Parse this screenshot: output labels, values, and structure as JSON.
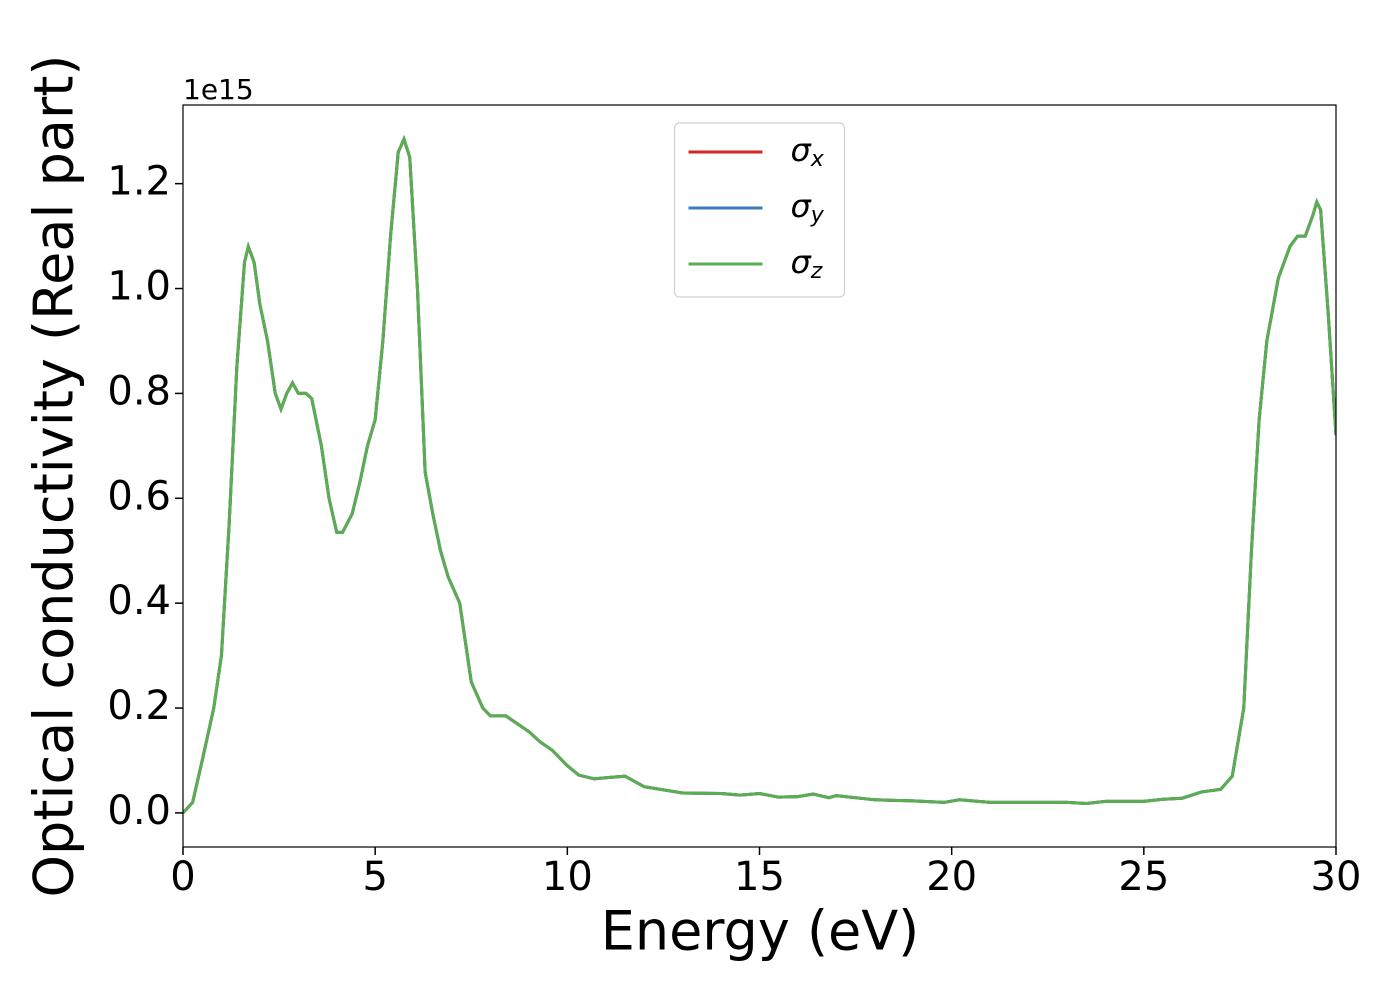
{
  "chart_data": {
    "type": "line",
    "xlabel": "Energy (eV)",
    "ylabel": "Optical conductivity (Real part)",
    "offset_label": "1e15",
    "x": [
      0,
      0.25,
      0.5,
      0.8,
      1.0,
      1.2,
      1.4,
      1.6,
      1.7,
      1.85,
      2.0,
      2.2,
      2.4,
      2.55,
      2.7,
      2.85,
      3.0,
      3.2,
      3.35,
      3.6,
      3.8,
      4.0,
      4.15,
      4.4,
      4.6,
      4.8,
      5.0,
      5.2,
      5.4,
      5.6,
      5.75,
      5.9,
      6.1,
      6.3,
      6.5,
      6.7,
      6.9,
      7.2,
      7.5,
      7.8,
      8.0,
      8.4,
      8.7,
      9.0,
      9.3,
      9.6,
      10.0,
      10.3,
      10.7,
      11.0,
      11.5,
      12.0,
      13.0,
      14.0,
      14.5,
      15.0,
      15.5,
      16.0,
      16.4,
      16.8,
      17.0,
      18.0,
      19.0,
      19.8,
      20.2,
      21.0,
      22.0,
      23.0,
      23.5,
      24.0,
      25.0,
      25.5,
      26.0,
      26.5,
      27.0,
      27.3,
      27.6,
      27.8,
      28.0,
      28.2,
      28.5,
      28.8,
      29.0,
      29.2,
      29.4,
      29.5,
      29.6,
      29.8,
      30.0
    ],
    "series": [
      {
        "name": "σx",
        "color": "#d62728",
        "values": [
          0,
          0.02,
          0.1,
          0.2,
          0.3,
          0.55,
          0.85,
          1.05,
          1.08,
          1.05,
          0.97,
          0.9,
          0.8,
          0.77,
          0.8,
          0.82,
          0.8,
          0.8,
          0.79,
          0.7,
          0.6,
          0.535,
          0.535,
          0.57,
          0.63,
          0.7,
          0.75,
          0.9,
          1.1,
          1.26,
          1.285,
          1.25,
          1.0,
          0.65,
          0.57,
          0.5,
          0.45,
          0.4,
          0.25,
          0.2,
          0.185,
          0.185,
          0.17,
          0.155,
          0.135,
          0.12,
          0.09,
          0.072,
          0.065,
          0.067,
          0.07,
          0.05,
          0.038,
          0.037,
          0.034,
          0.037,
          0.03,
          0.031,
          0.036,
          0.029,
          0.033,
          0.025,
          0.023,
          0.02,
          0.025,
          0.02,
          0.02,
          0.02,
          0.018,
          0.022,
          0.022,
          0.026,
          0.028,
          0.04,
          0.045,
          0.07,
          0.2,
          0.5,
          0.75,
          0.9,
          1.02,
          1.08,
          1.1,
          1.1,
          1.14,
          1.165,
          1.15,
          0.95,
          0.72
        ]
      },
      {
        "name": "σy",
        "color": "#3b7dbd",
        "values": [
          0,
          0.02,
          0.1,
          0.2,
          0.3,
          0.55,
          0.85,
          1.05,
          1.08,
          1.05,
          0.97,
          0.9,
          0.8,
          0.77,
          0.8,
          0.82,
          0.8,
          0.8,
          0.79,
          0.7,
          0.6,
          0.535,
          0.535,
          0.57,
          0.63,
          0.7,
          0.75,
          0.9,
          1.1,
          1.26,
          1.285,
          1.25,
          1.0,
          0.65,
          0.57,
          0.5,
          0.45,
          0.4,
          0.25,
          0.2,
          0.185,
          0.185,
          0.17,
          0.155,
          0.135,
          0.12,
          0.09,
          0.072,
          0.065,
          0.067,
          0.07,
          0.05,
          0.038,
          0.037,
          0.034,
          0.037,
          0.03,
          0.031,
          0.036,
          0.029,
          0.033,
          0.025,
          0.023,
          0.02,
          0.025,
          0.02,
          0.02,
          0.02,
          0.018,
          0.022,
          0.022,
          0.026,
          0.028,
          0.04,
          0.045,
          0.07,
          0.2,
          0.5,
          0.75,
          0.9,
          1.02,
          1.08,
          1.1,
          1.1,
          1.14,
          1.165,
          1.15,
          0.95,
          0.72
        ]
      },
      {
        "name": "σz",
        "color": "#5aad50",
        "values": [
          0,
          0.02,
          0.1,
          0.2,
          0.3,
          0.55,
          0.85,
          1.05,
          1.08,
          1.05,
          0.97,
          0.9,
          0.8,
          0.77,
          0.8,
          0.82,
          0.8,
          0.8,
          0.79,
          0.7,
          0.6,
          0.535,
          0.535,
          0.57,
          0.63,
          0.7,
          0.75,
          0.9,
          1.1,
          1.26,
          1.285,
          1.25,
          1.0,
          0.65,
          0.57,
          0.5,
          0.45,
          0.4,
          0.25,
          0.2,
          0.185,
          0.185,
          0.17,
          0.155,
          0.135,
          0.12,
          0.09,
          0.072,
          0.065,
          0.067,
          0.07,
          0.05,
          0.038,
          0.037,
          0.034,
          0.037,
          0.03,
          0.031,
          0.036,
          0.029,
          0.033,
          0.025,
          0.023,
          0.02,
          0.025,
          0.02,
          0.02,
          0.02,
          0.018,
          0.022,
          0.022,
          0.026,
          0.028,
          0.04,
          0.045,
          0.07,
          0.2,
          0.5,
          0.75,
          0.9,
          1.02,
          1.08,
          1.1,
          1.1,
          1.14,
          1.165,
          1.15,
          0.95,
          0.72
        ]
      }
    ],
    "xlim": [
      0,
      30
    ],
    "xticks": [
      0,
      5,
      10,
      15,
      20,
      25,
      30
    ],
    "ylim": [
      -0.065,
      1.35
    ],
    "yticks": [
      {
        "value": 0,
        "label": "0.0"
      },
      0.2,
      0.4,
      0.6,
      0.8,
      {
        "value": 1,
        "label": "1.0"
      },
      1.2
    ],
    "legend": "upper center",
    "grid": false
  }
}
